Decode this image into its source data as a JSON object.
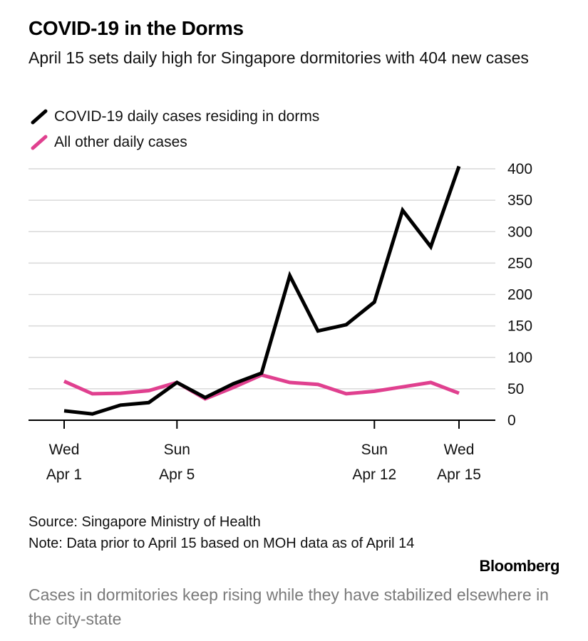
{
  "title": "COVID-19 in the Dorms",
  "subtitle": "April 15 sets daily high for Singapore dormitories with 404 new cases",
  "legend": [
    {
      "label": "COVID-19 daily cases residing in dorms",
      "color": "#000000"
    },
    {
      "label": "All other daily cases",
      "color": "#e0408f"
    }
  ],
  "footer": {
    "source": "Source: Singapore Ministry of Health",
    "note": "Note: Data prior to April 15 based on MOH data as of April 14"
  },
  "brand": "Bloomberg",
  "caption": "Cases in dormitories keep rising while they have stabilized elsewhere in the city-state",
  "chart_data": {
    "type": "line",
    "x": [
      "Apr 1",
      "Apr 2",
      "Apr 3",
      "Apr 4",
      "Apr 5",
      "Apr 6",
      "Apr 7",
      "Apr 8",
      "Apr 9",
      "Apr 10",
      "Apr 11",
      "Apr 12",
      "Apr 13",
      "Apr 14",
      "Apr 15"
    ],
    "series": [
      {
        "name": "COVID-19 daily cases residing in dorms",
        "color": "#000000",
        "values": [
          15,
          10,
          24,
          28,
          60,
          36,
          58,
          75,
          230,
          142,
          152,
          188,
          334,
          276,
          404
        ]
      },
      {
        "name": "All other daily cases",
        "color": "#e0408f",
        "values": [
          62,
          42,
          43,
          47,
          60,
          34,
          52,
          72,
          60,
          57,
          42,
          46,
          53,
          60,
          43
        ]
      }
    ],
    "ylim": [
      0,
      400
    ],
    "yticks": [
      0,
      50,
      100,
      150,
      200,
      250,
      300,
      350,
      400
    ],
    "y_axis_position": "right",
    "grid": true,
    "legend_position": "top-left",
    "xticks": [
      {
        "index": 0,
        "line1": "Wed",
        "line2": "Apr 1"
      },
      {
        "index": 4,
        "line1": "Sun",
        "line2": "Apr 5"
      },
      {
        "index": 11,
        "line1": "Sun",
        "line2": "Apr 12"
      },
      {
        "index": 14,
        "line1": "Wed",
        "line2": "Apr 15"
      }
    ]
  }
}
